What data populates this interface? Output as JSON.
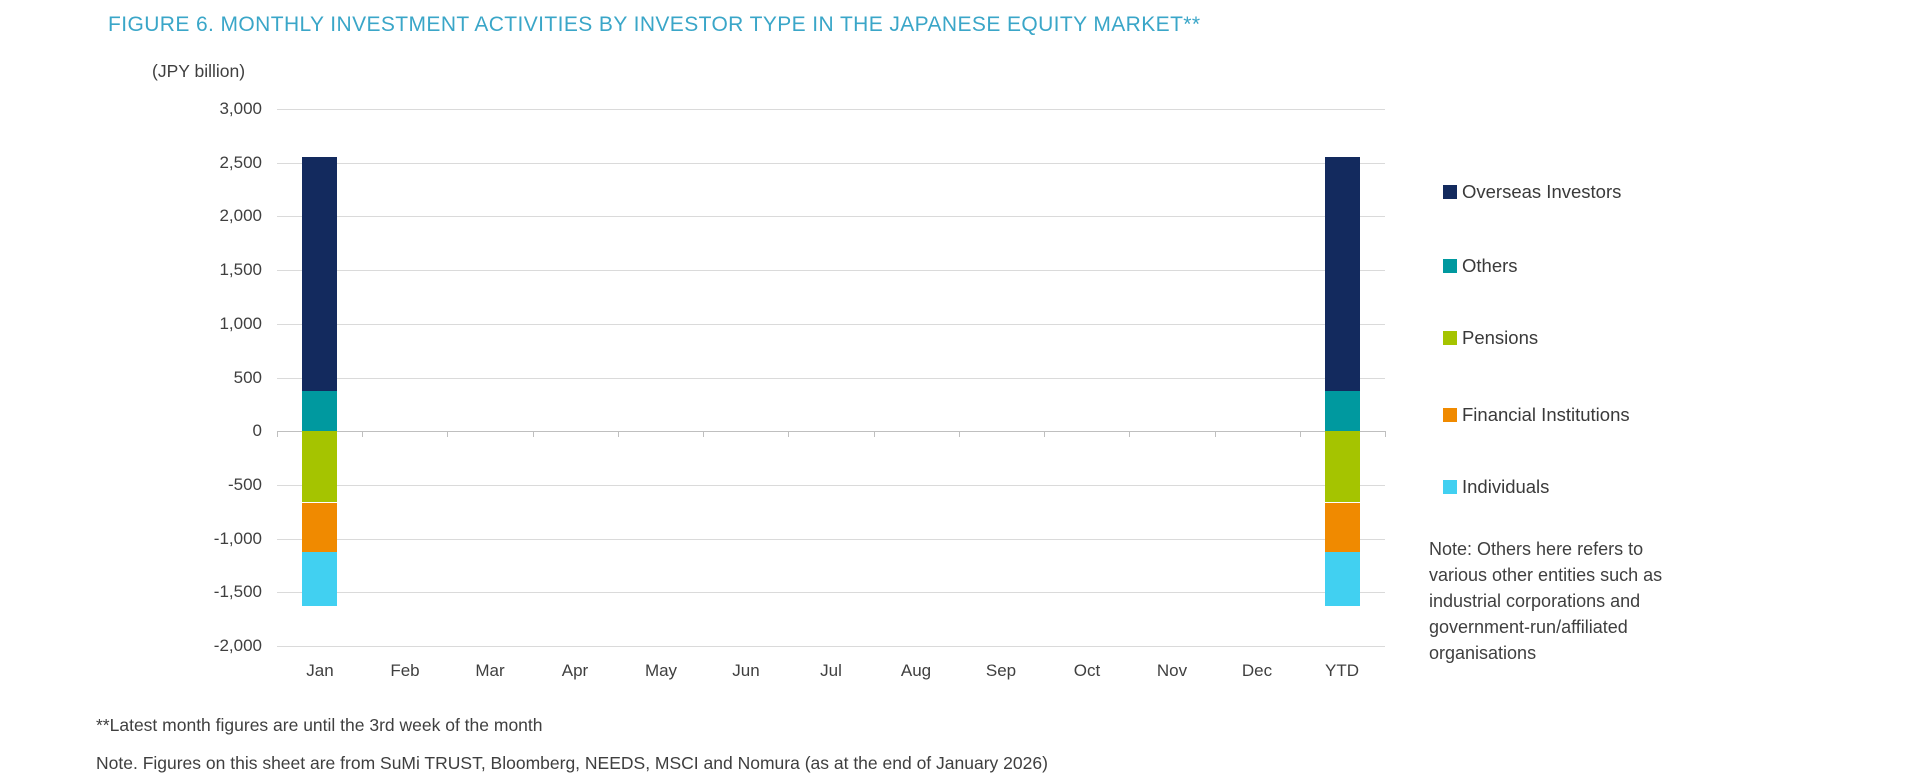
{
  "title": {
    "text": "FIGURE 6. MONTHLY INVESTMENT ACTIVITIES BY INVESTOR TYPE IN THE JAPANESE EQUITY MARKET**",
    "color": "#3AA6C8"
  },
  "chart_data": {
    "type": "bar",
    "stacked": true,
    "unit_label": "(JPY billion)",
    "categories": [
      "Jan",
      "Feb",
      "Mar",
      "Apr",
      "May",
      "Jun",
      "Jul",
      "Aug",
      "Sep",
      "Oct",
      "Nov",
      "Dec",
      "YTD"
    ],
    "series": [
      {
        "name": "Overseas Investors",
        "color": "#132A5E",
        "values": [
          2180,
          0,
          0,
          0,
          0,
          0,
          0,
          0,
          0,
          0,
          0,
          0,
          2180
        ]
      },
      {
        "name": "Others",
        "color": "#00999F",
        "values": [
          375,
          0,
          0,
          0,
          0,
          0,
          0,
          0,
          0,
          0,
          0,
          0,
          375
        ]
      },
      {
        "name": "Pensions",
        "color": "#A5C400",
        "values": [
          -665,
          0,
          0,
          0,
          0,
          0,
          0,
          0,
          0,
          0,
          0,
          0,
          -665
        ]
      },
      {
        "name": "Financial Institutions",
        "color": "#F08A00",
        "values": [
          -460,
          0,
          0,
          0,
          0,
          0,
          0,
          0,
          0,
          0,
          0,
          0,
          -460
        ]
      },
      {
        "name": "Individuals",
        "color": "#41D0F1",
        "values": [
          -505,
          0,
          0,
          0,
          0,
          0,
          0,
          0,
          0,
          0,
          0,
          0,
          -505
        ]
      }
    ],
    "stack_order": [
      "Others",
      "Pensions",
      "Financial Institutions",
      "Individuals",
      "Overseas Investors"
    ],
    "ylim": [
      -2000,
      3000
    ],
    "ytick_values": [
      3000,
      2500,
      2000,
      1500,
      1000,
      500,
      0,
      -500,
      -1000,
      -1500,
      -2000
    ],
    "ytick_labels": [
      "3,000",
      "2,500",
      "2,000",
      "1,500",
      "1,000",
      "500",
      "0",
      "-500",
      "-1,000",
      "-1,500",
      "-2,000"
    ],
    "grid": true,
    "legend_position": "right"
  },
  "legend_note": {
    "lines": [
      "Note: Others here refers to",
      "various other entities such as",
      "industrial corporations and",
      "government-run/affiliated",
      "organisations"
    ]
  },
  "footnotes": {
    "line1": "**Latest month figures are until the 3rd week of the month",
    "line2": "Note. Figures on this sheet are from SuMi TRUST, Bloomberg, NEEDS, MSCI and Nomura (as at the end of January 2026)"
  }
}
